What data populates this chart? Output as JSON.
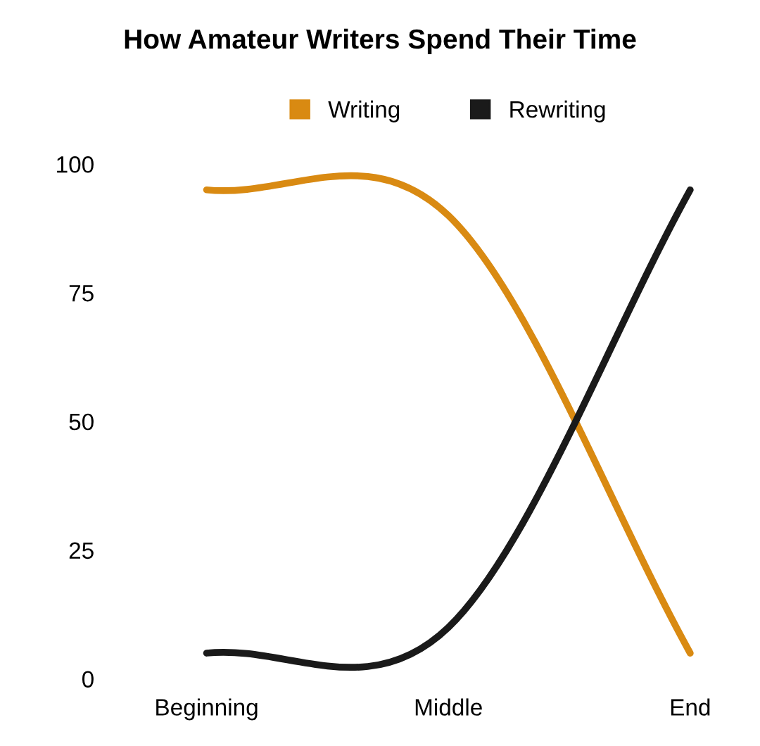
{
  "chart_data": {
    "type": "line",
    "title": "How Amateur Writers Spend Their Time",
    "categories": [
      "Beginning",
      "Middle",
      "End"
    ],
    "series": [
      {
        "name": "Writing",
        "color": "#d98a12",
        "values": [
          95,
          90,
          5
        ]
      },
      {
        "name": "Rewriting",
        "color": "#1a1a1a",
        "values": [
          5,
          10,
          95
        ]
      }
    ],
    "ylim": [
      0,
      100
    ],
    "yticks": [
      0,
      25,
      50,
      75,
      100
    ],
    "grid": false,
    "legend": "top",
    "line_style": "solid",
    "marker": "none"
  }
}
